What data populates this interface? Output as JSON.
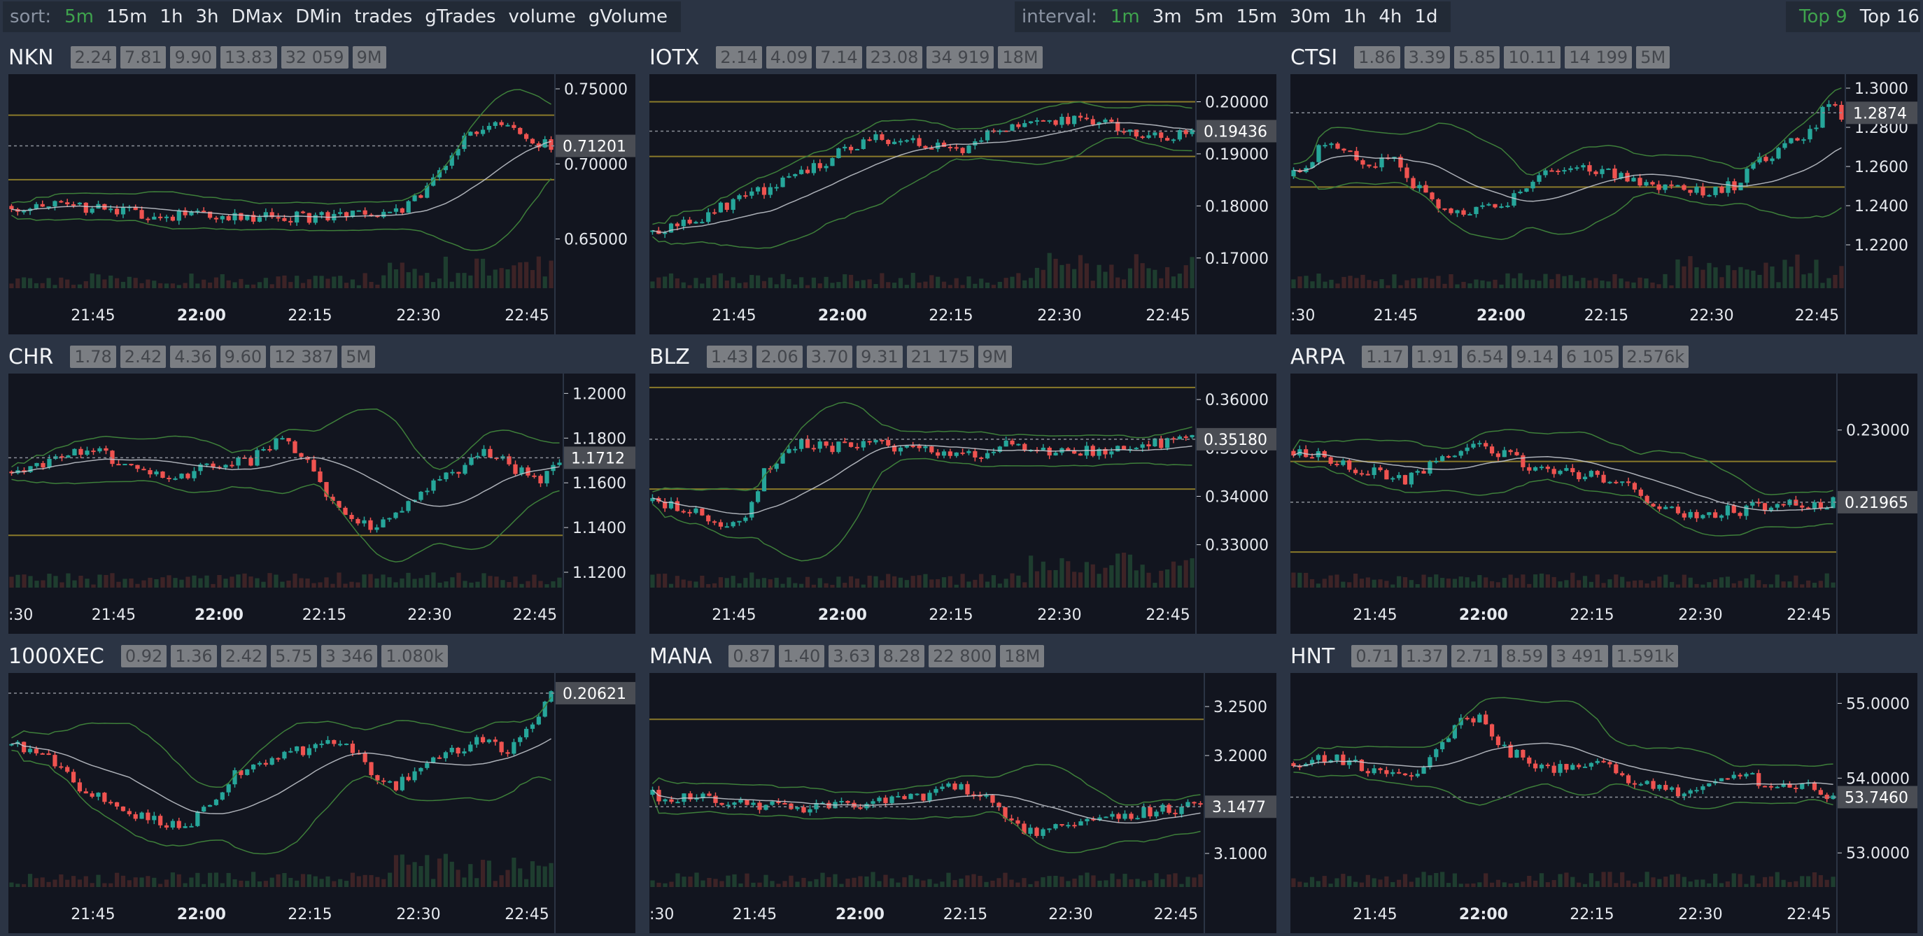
{
  "topbar": {
    "sort": {
      "label": "sort:",
      "items": [
        "5m",
        "15m",
        "1h",
        "3h",
        "DMax",
        "DMin",
        "trades",
        "gTrades",
        "volume",
        "gVolume"
      ],
      "active": "5m"
    },
    "interval": {
      "label": "interval:",
      "items": [
        "1m",
        "3m",
        "5m",
        "15m",
        "30m",
        "1h",
        "4h",
        "1d"
      ],
      "active": "1m"
    },
    "top": {
      "items": [
        "Top 9",
        "Top 16"
      ],
      "active": "Top 9"
    }
  },
  "colors": {
    "up": "#26a69a",
    "down": "#ef5350",
    "band": "#3e7f3a",
    "ma": "#c8cbd2",
    "level": "#8a7a2a",
    "active": "#3fa34d"
  },
  "panels": [
    {
      "symbol": "NKN",
      "badges": [
        "2.24",
        "7.81",
        "9.90",
        "13.83",
        "32 059",
        "9M"
      ],
      "chart_data": {
        "type": "candlestick",
        "yticks": [
          "0.75000",
          "0.70000",
          "0.65000"
        ],
        "ytick_values": [
          0.75,
          0.7,
          0.65
        ],
        "ylim": [
          0.62,
          0.757
        ],
        "current_price": "0.71201",
        "current_value": 0.71201,
        "levels": [
          0.7325,
          0.6895
        ],
        "time_labels": [
          {
            "text": "21:45",
            "bold": false
          },
          {
            "text": "22:00",
            "bold": true
          },
          {
            "text": "22:15",
            "bold": false
          },
          {
            "text": "22:30",
            "bold": false
          },
          {
            "text": "22:45",
            "bold": false
          }
        ],
        "path": [
          [
            0,
            0.672
          ],
          [
            10,
            0.671
          ],
          [
            20,
            0.667
          ],
          [
            30,
            0.665
          ],
          [
            45,
            0.6645
          ],
          [
            55,
            0.665
          ],
          [
            62,
            0.667
          ],
          [
            66,
            0.678
          ],
          [
            69,
            0.694
          ],
          [
            72,
            0.711
          ],
          [
            75,
            0.724
          ],
          [
            78,
            0.729
          ],
          [
            81,
            0.724
          ],
          [
            84,
            0.715
          ],
          [
            87,
            0.712
          ]
        ],
        "trend": "up"
      }
    },
    {
      "symbol": "IOTX",
      "badges": [
        "2.14",
        "4.09",
        "7.14",
        "23.08",
        "34 919",
        "18M"
      ],
      "chart_data": {
        "type": "candlestick",
        "yticks": [
          "0.20000",
          "0.19000",
          "0.18000",
          "0.17000"
        ],
        "ytick_values": [
          0.2,
          0.19,
          0.18,
          0.17
        ],
        "ylim": [
          0.165,
          0.2045
        ],
        "current_price": "0.19436",
        "current_value": 0.19436,
        "levels": [
          0.2,
          0.1895
        ],
        "time_labels": [
          {
            "text": "21:45",
            "bold": false
          },
          {
            "text": "22:00",
            "bold": true
          },
          {
            "text": "22:15",
            "bold": false
          },
          {
            "text": "22:30",
            "bold": false
          },
          {
            "text": "22:45",
            "bold": false
          }
        ],
        "path": [
          [
            0,
            0.175
          ],
          [
            8,
            0.178
          ],
          [
            16,
            0.182
          ],
          [
            24,
            0.186
          ],
          [
            30,
            0.19
          ],
          [
            36,
            0.193
          ],
          [
            44,
            0.192
          ],
          [
            50,
            0.1905
          ],
          [
            56,
            0.195
          ],
          [
            62,
            0.197
          ],
          [
            70,
            0.196
          ],
          [
            76,
            0.195
          ],
          [
            82,
            0.193
          ],
          [
            87,
            0.1944
          ]
        ],
        "trend": "up"
      }
    },
    {
      "symbol": "CTSI",
      "badges": [
        "1.86",
        "3.39",
        "5.85",
        "10.11",
        "14 199",
        "5M"
      ],
      "chart_data": {
        "type": "candlestick",
        "yticks": [
          "1.3000",
          "1.2800",
          "1.2600",
          "1.2400",
          "1.2200"
        ],
        "ytick_values": [
          1.3,
          1.28,
          1.26,
          1.24,
          1.22
        ],
        "ylim": [
          1.2,
          1.305
        ],
        "current_price": "1.2874",
        "current_value": 1.2874,
        "levels": [
          1.2495
        ],
        "time_labels": [
          {
            "text": ":30",
            "bold": false
          },
          {
            "text": "21:45",
            "bold": false
          },
          {
            "text": "22:00",
            "bold": true
          },
          {
            "text": "22:15",
            "bold": false
          },
          {
            "text": "22:30",
            "bold": false
          },
          {
            "text": "22:45",
            "bold": false
          }
        ],
        "path": [
          [
            0,
            1.255
          ],
          [
            4,
            1.268
          ],
          [
            8,
            1.27
          ],
          [
            12,
            1.262
          ],
          [
            16,
            1.262
          ],
          [
            20,
            1.248
          ],
          [
            24,
            1.238
          ],
          [
            28,
            1.235
          ],
          [
            32,
            1.24
          ],
          [
            36,
            1.245
          ],
          [
            40,
            1.258
          ],
          [
            44,
            1.262
          ],
          [
            48,
            1.258
          ],
          [
            54,
            1.255
          ],
          [
            58,
            1.248
          ],
          [
            64,
            1.247
          ],
          [
            70,
            1.25
          ],
          [
            74,
            1.262
          ],
          [
            78,
            1.27
          ],
          [
            82,
            1.278
          ],
          [
            85,
            1.292
          ],
          [
            87,
            1.287
          ]
        ],
        "trend": "up"
      }
    },
    {
      "symbol": "CHR",
      "badges": [
        "1.78",
        "2.42",
        "4.36",
        "9.60",
        "12 387",
        "5M"
      ],
      "chart_data": {
        "type": "candlestick",
        "yticks": [
          "1.2000",
          "1.1800",
          "1.1600",
          "1.1400",
          "1.1200"
        ],
        "ytick_values": [
          1.2,
          1.18,
          1.16,
          1.14,
          1.12
        ],
        "ylim": [
          1.115,
          1.207
        ],
        "current_price": "1.1712",
        "current_value": 1.1712,
        "levels": [
          1.1365
        ],
        "time_labels": [
          {
            "text": ":30",
            "bold": false
          },
          {
            "text": "21:45",
            "bold": false
          },
          {
            "text": "22:00",
            "bold": true
          },
          {
            "text": "22:15",
            "bold": false
          },
          {
            "text": "22:30",
            "bold": false
          },
          {
            "text": "22:45",
            "bold": false
          }
        ],
        "path": [
          [
            0,
            1.165
          ],
          [
            6,
            1.17
          ],
          [
            12,
            1.176
          ],
          [
            18,
            1.168
          ],
          [
            26,
            1.162
          ],
          [
            32,
            1.168
          ],
          [
            38,
            1.17
          ],
          [
            42,
            1.18
          ],
          [
            46,
            1.172
          ],
          [
            50,
            1.155
          ],
          [
            54,
            1.142
          ],
          [
            58,
            1.14
          ],
          [
            62,
            1.148
          ],
          [
            66,
            1.158
          ],
          [
            72,
            1.168
          ],
          [
            76,
            1.174
          ],
          [
            80,
            1.165
          ],
          [
            84,
            1.162
          ],
          [
            87,
            1.171
          ]
        ],
        "trend": "flat"
      }
    },
    {
      "symbol": "BLZ",
      "badges": [
        "1.43",
        "2.06",
        "3.70",
        "9.31",
        "21 175",
        "9M"
      ],
      "chart_data": {
        "type": "candlestick",
        "yticks": [
          "0.36000",
          "0.35000",
          "0.34000",
          "0.33000"
        ],
        "ytick_values": [
          0.36,
          0.35,
          0.34,
          0.33
        ],
        "ylim": [
          0.322,
          0.3645
        ],
        "current_price": "0.35180",
        "current_value": 0.3518,
        "levels": [
          0.3625,
          0.3415
        ],
        "time_labels": [
          {
            "text": "21:45",
            "bold": false
          },
          {
            "text": "22:00",
            "bold": true
          },
          {
            "text": "22:15",
            "bold": false
          },
          {
            "text": "22:30",
            "bold": false
          },
          {
            "text": "22:45",
            "bold": false
          }
        ],
        "path": [
          [
            0,
            0.339
          ],
          [
            6,
            0.337
          ],
          [
            10,
            0.335
          ],
          [
            14,
            0.334
          ],
          [
            18,
            0.345
          ],
          [
            22,
            0.351
          ],
          [
            28,
            0.35
          ],
          [
            34,
            0.351
          ],
          [
            40,
            0.35
          ],
          [
            46,
            0.349
          ],
          [
            52,
            0.348
          ],
          [
            56,
            0.351
          ],
          [
            62,
            0.35
          ],
          [
            68,
            0.349
          ],
          [
            74,
            0.35
          ],
          [
            80,
            0.351
          ],
          [
            87,
            0.3518
          ]
        ],
        "trend": "up"
      }
    },
    {
      "symbol": "ARPA",
      "badges": [
        "1.17",
        "1.91",
        "6.54",
        "9.14",
        "6 105",
        "2.576k"
      ],
      "chart_data": {
        "type": "candlestick",
        "yticks": [
          "0.23000"
        ],
        "ytick_values": [
          0.23
        ],
        "ylim": [
          0.208,
          0.2375
        ],
        "current_price": "0.21965",
        "current_value": 0.21965,
        "levels": [
          0.2255,
          0.2125
        ],
        "time_labels": [
          {
            "text": "21:45",
            "bold": false
          },
          {
            "text": "22:00",
            "bold": true
          },
          {
            "text": "22:15",
            "bold": false
          },
          {
            "text": "22:30",
            "bold": false
          },
          {
            "text": "22:45",
            "bold": false
          }
        ],
        "path": [
          [
            0,
            0.227
          ],
          [
            6,
            0.226
          ],
          [
            12,
            0.224
          ],
          [
            18,
            0.223
          ],
          [
            24,
            0.226
          ],
          [
            28,
            0.228
          ],
          [
            32,
            0.227
          ],
          [
            38,
            0.225
          ],
          [
            44,
            0.224
          ],
          [
            50,
            0.223
          ],
          [
            54,
            0.222
          ],
          [
            58,
            0.219
          ],
          [
            62,
            0.218
          ],
          [
            66,
            0.218
          ],
          [
            72,
            0.2185
          ],
          [
            78,
            0.2195
          ],
          [
            84,
            0.219
          ],
          [
            87,
            0.2196
          ]
        ],
        "trend": "down"
      }
    },
    {
      "symbol": "1000XEC",
      "badges": [
        "0.92",
        "1.36",
        "2.42",
        "5.75",
        "3 346",
        "1.080k"
      ],
      "chart_data": {
        "type": "candlestick",
        "yticks": [],
        "ytick_values": [],
        "ylim": [
          0.185,
          0.208
        ],
        "current_price": "0.20621",
        "current_value": 0.20621,
        "levels": [],
        "time_labels": [
          {
            "text": "21:45",
            "bold": false
          },
          {
            "text": "22:00",
            "bold": true
          },
          {
            "text": "22:15",
            "bold": false
          },
          {
            "text": "22:30",
            "bold": false
          },
          {
            "text": "22:45",
            "bold": false
          }
        ],
        "path": [
          [
            0,
            0.2005
          ],
          [
            6,
            0.199
          ],
          [
            10,
            0.196
          ],
          [
            16,
            0.194
          ],
          [
            22,
            0.192
          ],
          [
            28,
            0.191
          ],
          [
            32,
            0.194
          ],
          [
            36,
            0.197
          ],
          [
            42,
            0.199
          ],
          [
            48,
            0.2
          ],
          [
            54,
            0.201
          ],
          [
            58,
            0.197
          ],
          [
            62,
            0.196
          ],
          [
            66,
            0.198
          ],
          [
            72,
            0.2
          ],
          [
            76,
            0.201
          ],
          [
            80,
            0.2
          ],
          [
            84,
            0.203
          ],
          [
            87,
            0.2062
          ]
        ],
        "trend": "up"
      }
    },
    {
      "symbol": "MANA",
      "badges": [
        "0.87",
        "1.40",
        "3.63",
        "8.28",
        "22 800",
        "18M"
      ],
      "chart_data": {
        "type": "candlestick",
        "yticks": [
          "3.2500",
          "3.2000",
          "3.1500",
          "3.1000"
        ],
        "ytick_values": [
          3.25,
          3.2,
          3.15,
          3.1
        ],
        "ylim": [
          3.07,
          3.28
        ],
        "current_price": "3.1477",
        "current_value": 3.1477,
        "levels": [
          3.237
        ],
        "time_labels": [
          {
            "text": ":30",
            "bold": false
          },
          {
            "text": "21:45",
            "bold": false
          },
          {
            "text": "22:00",
            "bold": true
          },
          {
            "text": "22:15",
            "bold": false
          },
          {
            "text": "22:30",
            "bold": false
          },
          {
            "text": "22:45",
            "bold": false
          }
        ],
        "path": [
          [
            0,
            3.16
          ],
          [
            8,
            3.155
          ],
          [
            16,
            3.15
          ],
          [
            24,
            3.148
          ],
          [
            32,
            3.15
          ],
          [
            38,
            3.152
          ],
          [
            44,
            3.16
          ],
          [
            48,
            3.17
          ],
          [
            52,
            3.16
          ],
          [
            56,
            3.14
          ],
          [
            60,
            3.12
          ],
          [
            64,
            3.125
          ],
          [
            70,
            3.135
          ],
          [
            76,
            3.14
          ],
          [
            82,
            3.145
          ],
          [
            87,
            3.1477
          ]
        ],
        "trend": "flat"
      }
    },
    {
      "symbol": "HNT",
      "badges": [
        "0.71",
        "1.37",
        "2.71",
        "8.59",
        "3 491",
        "1.591k"
      ],
      "chart_data": {
        "type": "candlestick",
        "yticks": [
          "55.0000",
          "54.0000",
          "53.0000"
        ],
        "ytick_values": [
          55,
          54,
          53
        ],
        "ylim": [
          52.6,
          55.35
        ],
        "current_price": "53.7460",
        "current_value": 53.746,
        "levels": [],
        "time_labels": [
          {
            "text": "21:45",
            "bold": false
          },
          {
            "text": "22:00",
            "bold": true
          },
          {
            "text": "22:15",
            "bold": false
          },
          {
            "text": "22:30",
            "bold": false
          },
          {
            "text": "22:45",
            "bold": false
          }
        ],
        "path": [
          [
            0,
            54.2
          ],
          [
            6,
            54.3
          ],
          [
            12,
            54.1
          ],
          [
            18,
            54.0
          ],
          [
            22,
            54.2
          ],
          [
            26,
            54.7
          ],
          [
            30,
            54.8
          ],
          [
            34,
            54.4
          ],
          [
            38,
            54.2
          ],
          [
            44,
            54.1
          ],
          [
            50,
            54.2
          ],
          [
            54,
            54.0
          ],
          [
            58,
            53.85
          ],
          [
            62,
            53.8
          ],
          [
            68,
            53.9
          ],
          [
            72,
            54.05
          ],
          [
            76,
            53.95
          ],
          [
            82,
            53.9
          ],
          [
            87,
            53.746
          ]
        ],
        "trend": "down"
      }
    }
  ]
}
